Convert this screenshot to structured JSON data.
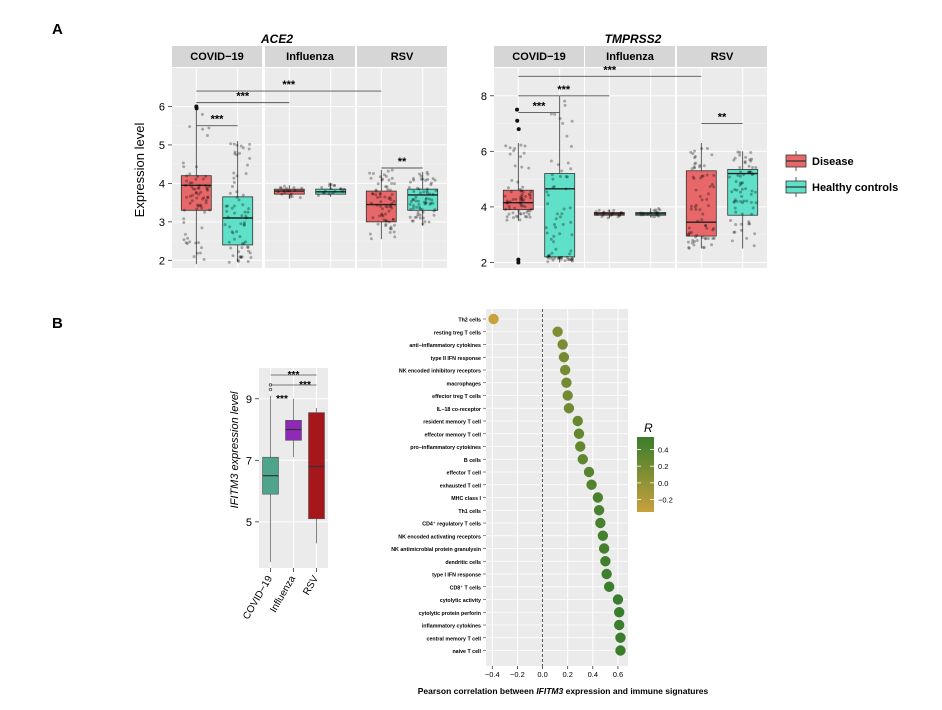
{
  "panel_a": {
    "letter": "A",
    "ylabel": "Expression level",
    "legend": {
      "entries": [
        {
          "label": "Disease",
          "color": "#e8686a"
        },
        {
          "label": "Healthy controls",
          "color": "#5fe0c8"
        }
      ]
    }
  },
  "panel_b": {
    "letter": "B"
  },
  "sig_labels": [
    "***",
    "**"
  ],
  "chart_data": [
    {
      "id": "ace2",
      "type": "box",
      "title": "ACE2",
      "ylabel": "Expression level",
      "ylim": [
        1.8,
        7.0
      ],
      "yticks": [
        2,
        3,
        4,
        5,
        6
      ],
      "facets": [
        {
          "name": "COVID−19",
          "boxes": [
            {
              "group": "Disease",
              "min": 1.9,
              "q1": 3.3,
              "median": 3.95,
              "q3": 4.2,
              "max": 5.9,
              "outliers": [
                6.0,
                5.95
              ]
            },
            {
              "group": "Healthy controls",
              "min": 1.95,
              "q1": 2.4,
              "median": 3.1,
              "q3": 3.65,
              "max": 5.1,
              "outliers": []
            }
          ]
        },
        {
          "name": "Influenza",
          "boxes": [
            {
              "group": "Disease",
              "min": 3.6,
              "q1": 3.72,
              "median": 3.8,
              "q3": 3.85,
              "max": 3.95,
              "outliers": []
            },
            {
              "group": "Healthy controls",
              "min": 3.65,
              "q1": 3.72,
              "median": 3.78,
              "q3": 3.85,
              "max": 4.0,
              "outliers": []
            }
          ]
        },
        {
          "name": "RSV",
          "boxes": [
            {
              "group": "Disease",
              "min": 2.55,
              "q1": 3.0,
              "median": 3.45,
              "q3": 3.8,
              "max": 4.35,
              "outliers": []
            },
            {
              "group": "Healthy controls",
              "min": 2.9,
              "q1": 3.3,
              "median": 3.7,
              "q3": 3.85,
              "max": 4.3,
              "outliers": []
            }
          ]
        }
      ],
      "significance": [
        {
          "from": [
            0,
            0
          ],
          "to": [
            0,
            1
          ],
          "y": 5.5,
          "label": "***"
        },
        {
          "from": [
            0,
            0
          ],
          "to": [
            1,
            0
          ],
          "y": 6.1,
          "label": "***"
        },
        {
          "from": [
            0,
            0
          ],
          "to": [
            2,
            0
          ],
          "y": 6.4,
          "label": "***"
        },
        {
          "from": [
            2,
            0
          ],
          "to": [
            2,
            1
          ],
          "y": 4.4,
          "label": "**"
        }
      ]
    },
    {
      "id": "tmprss2",
      "type": "box",
      "title": "TMPRSS2",
      "ylabel": "",
      "ylim": [
        1.8,
        9.0
      ],
      "yticks": [
        2,
        4,
        6,
        8
      ],
      "facets": [
        {
          "name": "COVID−19",
          "boxes": [
            {
              "group": "Disease",
              "min": 3.5,
              "q1": 3.9,
              "median": 4.15,
              "q3": 4.6,
              "max": 6.3,
              "outliers": [
                2.0,
                2.1,
                6.8,
                7.1,
                7.5
              ]
            },
            {
              "group": "Healthy controls",
              "min": 2.0,
              "q1": 2.2,
              "median": 4.65,
              "q3": 5.2,
              "max": 8.0,
              "outliers": []
            }
          ]
        },
        {
          "name": "Influenza",
          "boxes": [
            {
              "group": "Disease",
              "min": 3.6,
              "q1": 3.7,
              "median": 3.75,
              "q3": 3.8,
              "max": 3.9,
              "outliers": []
            },
            {
              "group": "Healthy controls",
              "min": 3.62,
              "q1": 3.7,
              "median": 3.75,
              "q3": 3.8,
              "max": 3.95,
              "outliers": []
            }
          ]
        },
        {
          "name": "RSV",
          "boxes": [
            {
              "group": "Disease",
              "min": 2.5,
              "q1": 2.95,
              "median": 3.45,
              "q3": 5.3,
              "max": 6.3,
              "outliers": []
            },
            {
              "group": "Healthy controls",
              "min": 2.5,
              "q1": 3.7,
              "median": 5.2,
              "q3": 5.35,
              "max": 6.0,
              "outliers": []
            }
          ]
        }
      ],
      "significance": [
        {
          "from": [
            0,
            0
          ],
          "to": [
            0,
            1
          ],
          "y": 7.4,
          "label": "***"
        },
        {
          "from": [
            0,
            0
          ],
          "to": [
            1,
            0
          ],
          "y": 8.0,
          "label": "***"
        },
        {
          "from": [
            0,
            0
          ],
          "to": [
            2,
            0
          ],
          "y": 8.7,
          "label": "***"
        },
        {
          "from": [
            2,
            0
          ],
          "to": [
            2,
            1
          ],
          "y": 7.0,
          "label": "**"
        }
      ]
    },
    {
      "id": "ifitm3",
      "type": "box",
      "ylabel": "IFITM3 expression level",
      "ylim": [
        3.5,
        10.0
      ],
      "yticks": [
        5,
        7,
        9
      ],
      "categories": [
        "COVID−19",
        "Influenza",
        "RSV"
      ],
      "boxes": [
        {
          "category": "COVID−19",
          "color": "#4fa58c",
          "min": 3.7,
          "q1": 5.9,
          "median": 6.5,
          "q3": 7.1,
          "max": 9.1,
          "outliers": [
            9.3,
            9.45
          ]
        },
        {
          "category": "Influenza",
          "color": "#8e2ab5",
          "min": 7.1,
          "q1": 7.65,
          "median": 8.0,
          "q3": 8.3,
          "max": 9.0,
          "outliers": []
        },
        {
          "category": "RSV",
          "color": "#a5171a",
          "min": 4.3,
          "q1": 5.1,
          "median": 6.8,
          "q3": 8.55,
          "max": 8.7,
          "outliers": []
        }
      ],
      "significance": [
        {
          "from": 0,
          "to": 1,
          "label": "***"
        },
        {
          "from": 0,
          "to": 2,
          "label": "***"
        },
        {
          "from": 1,
          "to": 2,
          "label": "***"
        }
      ]
    },
    {
      "id": "correlation",
      "type": "scatter",
      "xlabel_parts": [
        "Pearson correlation between ",
        "IFITM3",
        " expression and immune signatures"
      ],
      "xlim": [
        -0.45,
        0.68
      ],
      "xticks": [
        -0.4,
        -0.2,
        0.0,
        0.2,
        0.4,
        0.6
      ],
      "xtick_labels": [
        "−0.4",
        "−0.2",
        "0.0",
        "0.2",
        "0.4",
        "0.6"
      ],
      "reference_line": 0,
      "color_scale": {
        "title": "R",
        "ticks": [
          0.4,
          0.2,
          0.0,
          -0.2
        ],
        "tick_labels": [
          "0.4",
          "0.2",
          "0.0",
          "−0.2"
        ],
        "low": "#c9a13c",
        "high": "#3a7d2c",
        "range": [
          -0.35,
          0.55
        ]
      },
      "points": [
        {
          "label": "Th2 cells",
          "x": -0.39
        },
        {
          "label": "resting treg T cells",
          "x": 0.12
        },
        {
          "label": "anti−inflammatory cytokines",
          "x": 0.16
        },
        {
          "label": "type II IFN response",
          "x": 0.17
        },
        {
          "label": "NK encoded inhibitory receptors",
          "x": 0.18
        },
        {
          "label": "macrophages",
          "x": 0.19
        },
        {
          "label": "effector treg T cells",
          "x": 0.2
        },
        {
          "label": "IL−18 co-receptor",
          "x": 0.21
        },
        {
          "label": "resident memory T cell",
          "x": 0.28
        },
        {
          "label": "effector memory T cell",
          "x": 0.29
        },
        {
          "label": "pro−inflammatory cytokines",
          "x": 0.3
        },
        {
          "label": "B cells",
          "x": 0.32
        },
        {
          "label": "effector T cell",
          "x": 0.37
        },
        {
          "label": "exhausted T cell",
          "x": 0.39
        },
        {
          "label": "MHC class I",
          "x": 0.44
        },
        {
          "label": "Th1 cells",
          "x": 0.45
        },
        {
          "label": "CD4⁺ regulatory T cells",
          "x": 0.46
        },
        {
          "label": "NK encoded activating receptors",
          "x": 0.48
        },
        {
          "label": "NK antimicrobial protein granulysin",
          "x": 0.49
        },
        {
          "label": "dendritic cells",
          "x": 0.5
        },
        {
          "label": "type I IFN response",
          "x": 0.51
        },
        {
          "label": "CD8⁺ T cells",
          "x": 0.53
        },
        {
          "label": "cytolytic activity",
          "x": 0.6
        },
        {
          "label": "cytolytic protein perforin",
          "x": 0.61
        },
        {
          "label": "inflammatory cytokines",
          "x": 0.61
        },
        {
          "label": "central memory T cell",
          "x": 0.62
        },
        {
          "label": "naive T cell",
          "x": 0.62
        }
      ]
    }
  ]
}
